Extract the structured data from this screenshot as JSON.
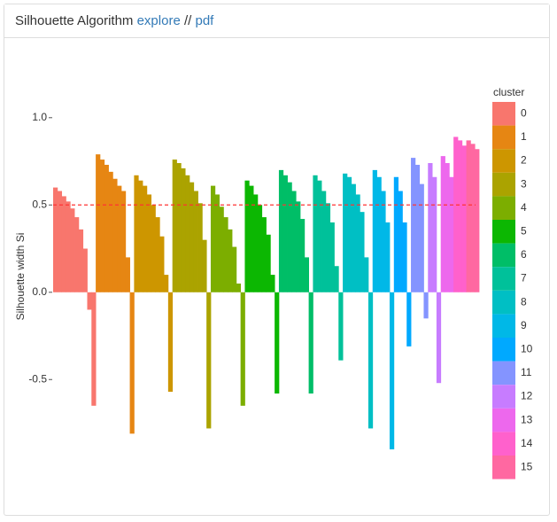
{
  "header": {
    "title": "Silhouette Algorithm",
    "link_explore": "explore",
    "separator": "//",
    "link_pdf": "pdf"
  },
  "chart_data": {
    "type": "silhouette",
    "y_label": "Silhouette width Si",
    "legend_title": "cluster",
    "legend": "right",
    "ylim": [
      -0.92,
      1.07
    ],
    "yticks": [
      {
        "value": 1.0,
        "label": "1.0"
      },
      0.5,
      {
        "value": 0.0,
        "label": "0.0"
      },
      -0.5
    ],
    "mean_line": 0.5,
    "mean_line_color": "#ff3333",
    "series": [
      {
        "name": "0",
        "color": "#F8766D",
        "values": [
          0.6,
          0.58,
          0.55,
          0.52,
          0.48,
          0.43,
          0.36,
          0.25,
          -0.1,
          -0.65
        ]
      },
      {
        "name": "1",
        "color": "#E68613",
        "values": [
          0.79,
          0.76,
          0.73,
          0.69,
          0.65,
          0.61,
          0.58,
          0.2,
          -0.81
        ]
      },
      {
        "name": "2",
        "color": "#CD9600",
        "values": [
          0.67,
          0.64,
          0.61,
          0.56,
          0.5,
          0.43,
          0.32,
          0.1,
          -0.57
        ]
      },
      {
        "name": "3",
        "color": "#ABA300",
        "values": [
          0.76,
          0.74,
          0.71,
          0.67,
          0.63,
          0.58,
          0.51,
          0.3,
          -0.78
        ]
      },
      {
        "name": "4",
        "color": "#7CAE00",
        "values": [
          0.61,
          0.56,
          0.49,
          0.43,
          0.36,
          0.26,
          0.05,
          -0.65
        ]
      },
      {
        "name": "5",
        "color": "#0CB702",
        "values": [
          0.64,
          0.61,
          0.56,
          0.5,
          0.43,
          0.33,
          0.1,
          -0.58
        ]
      },
      {
        "name": "6",
        "color": "#00BE67",
        "values": [
          0.7,
          0.67,
          0.63,
          0.58,
          0.52,
          0.42,
          0.2,
          -0.58
        ]
      },
      {
        "name": "7",
        "color": "#00C19A",
        "values": [
          0.67,
          0.64,
          0.58,
          0.51,
          0.4,
          0.15,
          -0.39
        ]
      },
      {
        "name": "8",
        "color": "#00BFC4",
        "values": [
          0.68,
          0.66,
          0.62,
          0.56,
          0.46,
          0.2,
          -0.78
        ]
      },
      {
        "name": "9",
        "color": "#00B8E7",
        "values": [
          0.7,
          0.66,
          0.58,
          0.4,
          -0.9
        ]
      },
      {
        "name": "10",
        "color": "#00A9FF",
        "values": [
          0.66,
          0.58,
          0.4,
          -0.31
        ]
      },
      {
        "name": "11",
        "color": "#8494FF",
        "values": [
          0.77,
          0.73,
          0.62,
          -0.15
        ]
      },
      {
        "name": "12",
        "color": "#C77CFF",
        "values": [
          0.74,
          0.66,
          -0.52
        ]
      },
      {
        "name": "13",
        "color": "#ED68ED",
        "values": [
          0.78,
          0.74,
          0.66
        ]
      },
      {
        "name": "14",
        "color": "#FF61CC",
        "values": [
          0.89,
          0.87,
          0.84
        ]
      },
      {
        "name": "15",
        "color": "#FF68A1",
        "values": [
          0.87,
          0.85,
          0.82
        ]
      }
    ]
  }
}
